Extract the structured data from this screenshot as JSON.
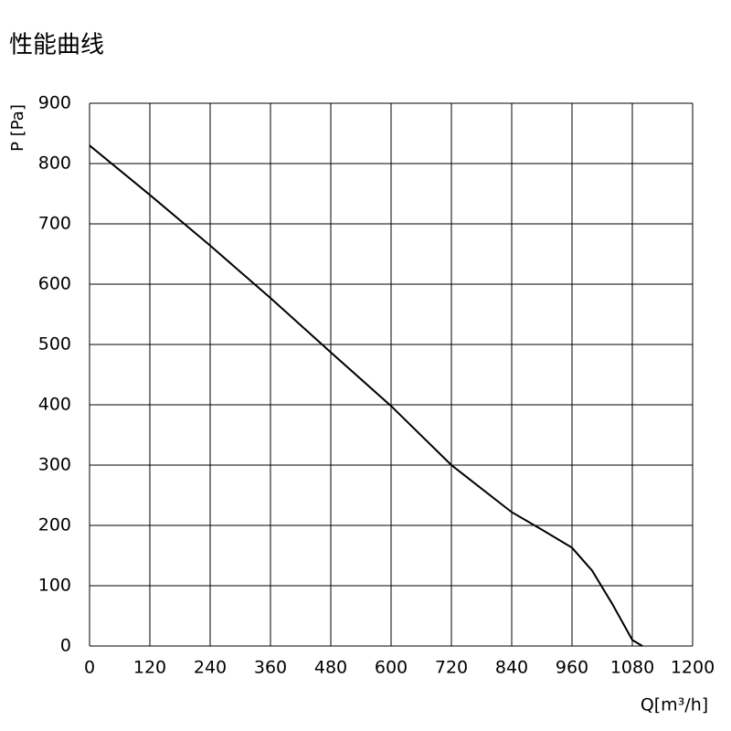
{
  "chart_data": {
    "type": "line",
    "title": "性能曲线",
    "x_label": "Q[m³/h]",
    "y_label": "P [Pa]",
    "x": [
      0,
      120,
      240,
      360,
      480,
      600,
      720,
      840,
      900,
      960,
      1000,
      1040,
      1080,
      1100
    ],
    "series": [
      {
        "name": "P",
        "color": "#000000",
        "values": [
          830,
          748,
          664,
          577,
          487,
          398,
          300,
          222,
          193,
          163,
          125,
          70,
          10,
          0
        ]
      }
    ],
    "xlim": [
      0,
      1200
    ],
    "xticks": [
      0,
      120,
      240,
      360,
      480,
      600,
      720,
      840,
      960,
      1080,
      1200
    ],
    "ylim": [
      0,
      900
    ],
    "yticks": [
      0,
      100,
      200,
      300,
      400,
      500,
      600,
      700,
      800,
      900
    ],
    "grid": true
  }
}
